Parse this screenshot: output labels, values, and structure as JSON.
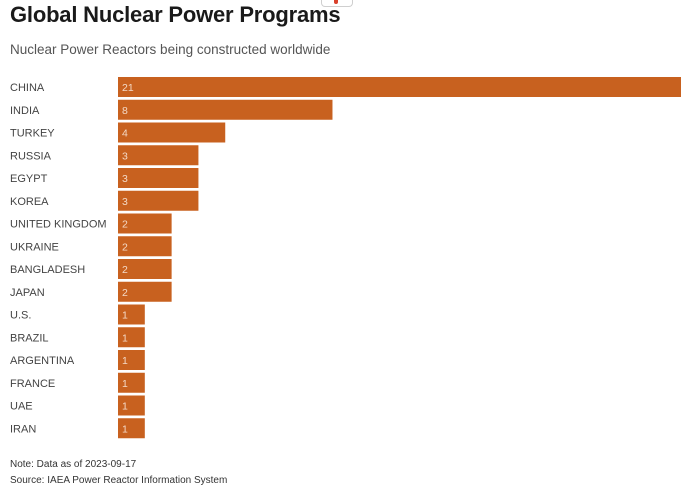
{
  "title": "Global Nuclear Power Programs",
  "subtitle": "Nuclear Power Reactors being constructed worldwide",
  "note": "Note: Data as of 2023-09-17",
  "source": "Source: IAEA Power Reactor Information System",
  "colors": {
    "bar": "#c8611f",
    "value_text": "#f3d9c6"
  },
  "chart_data": {
    "type": "bar",
    "orientation": "horizontal",
    "categories": [
      "CHINA",
      "INDIA",
      "TURKEY",
      "RUSSIA",
      "EGYPT",
      "KOREA",
      "UNITED KINGDOM",
      "UKRAINE",
      "BANGLADESH",
      "JAPAN",
      "U.S.",
      "BRAZIL",
      "ARGENTINA",
      "FRANCE",
      "UAE",
      "IRAN"
    ],
    "values": [
      21,
      8,
      4,
      3,
      3,
      3,
      2,
      2,
      2,
      2,
      1,
      1,
      1,
      1,
      1,
      1
    ],
    "value_labels": [
      "21",
      "8",
      "4",
      "3",
      "3",
      "3",
      "2",
      "2",
      "2",
      "2",
      "1",
      "1",
      "1",
      "1",
      "1",
      "1"
    ],
    "xlim": [
      0,
      21
    ],
    "grid": false,
    "legend": "none"
  }
}
